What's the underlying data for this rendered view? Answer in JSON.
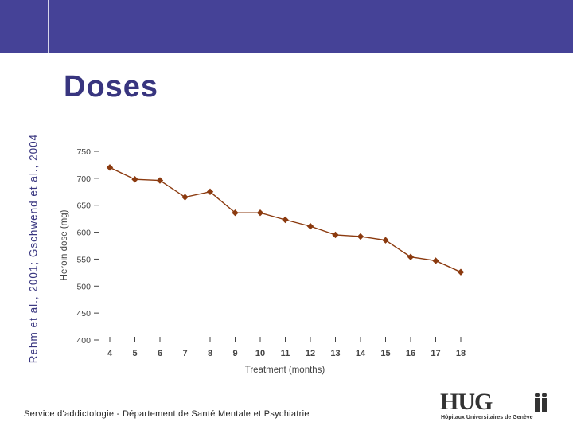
{
  "slide": {
    "title": "Doses",
    "citation": "Rehm et al., 2001; Gschwend et al., 2004",
    "footer": "Service d'addictologie - Département de Santé Mentale et Psychiatrie",
    "logo_text": "HUG",
    "logo_caption": "Hôpitaux Universitaires de Genève"
  },
  "colors": {
    "header_bar": "#454297",
    "title": "#38357f",
    "series": "#8b3a0f",
    "axis_text": "#444444"
  },
  "chart_data": {
    "type": "line",
    "title": "",
    "xlabel": "Treatment (months)",
    "ylabel": "Heroin dose (mg)",
    "categories": [
      "4",
      "5",
      "6",
      "7",
      "8",
      "9",
      "10",
      "11",
      "12",
      "13",
      "14",
      "15",
      "16",
      "17",
      "18"
    ],
    "series": [
      {
        "name": "Heroin dose",
        "values": [
          720,
          698,
          696,
          665,
          675,
          636,
          636,
          623,
          611,
          595,
          592,
          585,
          554,
          547,
          526
        ]
      }
    ],
    "yticks": [
      400,
      450,
      500,
      550,
      600,
      650,
      700,
      750
    ],
    "ylim": [
      400,
      750
    ],
    "grid": false,
    "legend": "none"
  }
}
